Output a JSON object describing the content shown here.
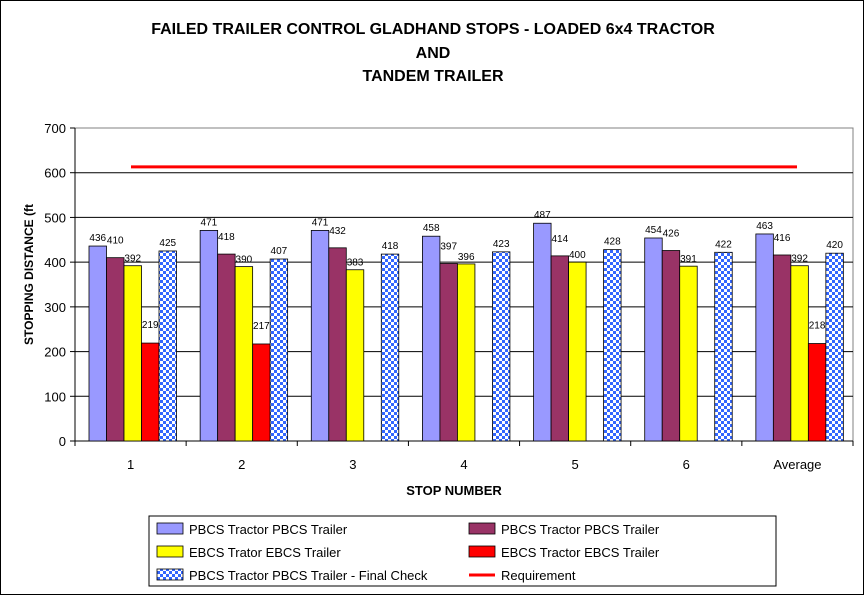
{
  "chart_data": {
    "type": "bar",
    "title_lines": [
      "FAILED TRAILER CONTROL GLADHAND STOPS - LOADED 6x4 TRACTOR",
      "AND",
      "TANDEM TRAILER"
    ],
    "xlabel": "STOP NUMBER",
    "ylabel": "STOPPING DISTANCE (ft",
    "ylim": [
      0,
      700
    ],
    "yticks": [
      0,
      100,
      200,
      300,
      400,
      500,
      600,
      700
    ],
    "grid": true,
    "legend_position": "bottom",
    "categories": [
      "1",
      "2",
      "3",
      "4",
      "5",
      "6",
      "Average"
    ],
    "series": [
      {
        "name": "PBCS Tractor PBCS Trailer",
        "color": "#9999ff",
        "pattern": "solid",
        "values": [
          436,
          471,
          471,
          458,
          487,
          454,
          463
        ]
      },
      {
        "name": "PBCS Tractor PBCS Trailer",
        "color": "#993366",
        "pattern": "solid",
        "values": [
          410,
          418,
          432,
          397,
          414,
          426,
          416
        ]
      },
      {
        "name": "EBCS Trator EBCS Trailer",
        "color": "#ffff00",
        "pattern": "solid",
        "values": [
          392,
          390,
          383,
          396,
          400,
          391,
          392
        ]
      },
      {
        "name": "EBCS Tractor EBCS Trailer",
        "color": "#ff0000",
        "pattern": "solid",
        "values": [
          219,
          217,
          null,
          null,
          null,
          null,
          218
        ]
      },
      {
        "name": "PBCS Tractor PBCS Trailer - Final Check",
        "color": "#3366ff",
        "pattern": "checker",
        "values": [
          425,
          407,
          418,
          423,
          428,
          422,
          420
        ]
      }
    ],
    "reference_line": {
      "name": "Requirement",
      "value": 613,
      "color": "#ff0000"
    }
  }
}
